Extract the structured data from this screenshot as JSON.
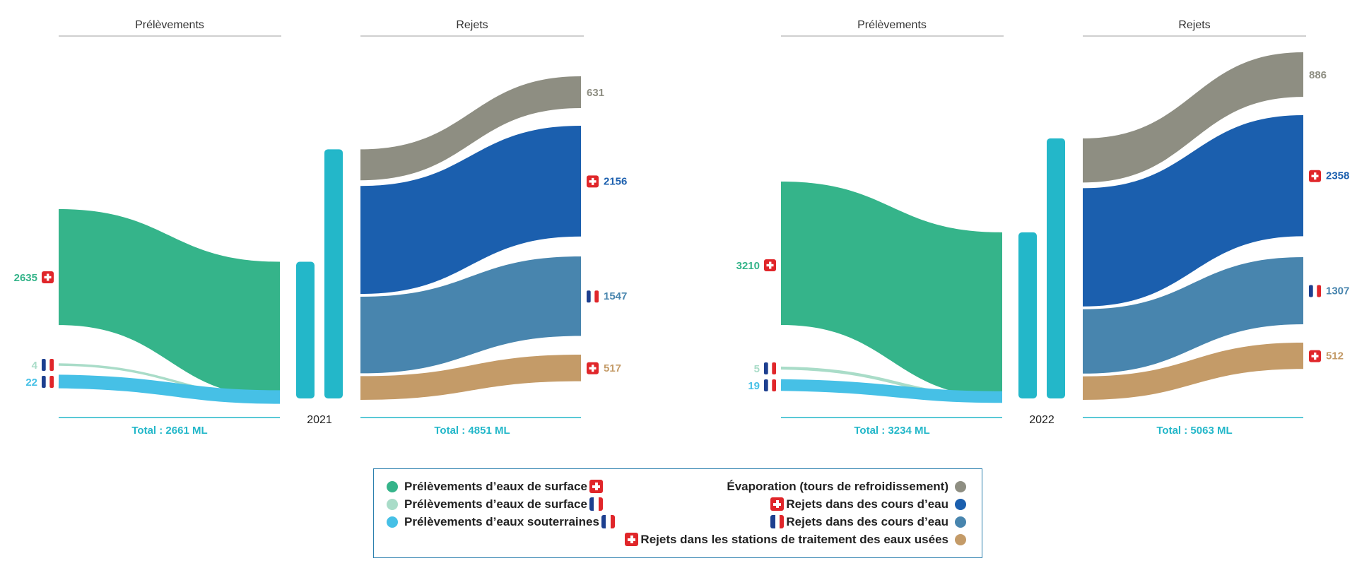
{
  "chart_data": [
    {
      "type": "sankey",
      "year": "2021",
      "left_header": "Prélèvements",
      "right_header": "Rejets",
      "left_total": "Total : 2661 ML",
      "right_total": "Total : 4851 ML",
      "sources": [
        {
          "name": "Prélèvements d’eaux de surface",
          "country": "ch",
          "value": 2635,
          "color": "#35b48a"
        },
        {
          "name": "Prélèvements d’eaux de surface",
          "country": "fr",
          "value": 4,
          "color": "#a9dcc8"
        },
        {
          "name": "Prélèvements d’eaux souterraines",
          "country": "fr",
          "value": 22,
          "color": "#46c0e6"
        }
      ],
      "outputs": [
        {
          "name": "Évaporation (tours de refroidissement)",
          "country": "",
          "value": 631,
          "color": "#8e8e82"
        },
        {
          "name": "Rejets dans des cours d’eau",
          "country": "ch",
          "value": 2156,
          "color": "#1b5fae"
        },
        {
          "name": "Rejets dans des cours d’eau",
          "country": "fr",
          "value": 1547,
          "color": "#4885ae"
        },
        {
          "name": "Rejets dans les stations de traitement des eaux usées",
          "country": "ch",
          "value": 517,
          "color": "#c49b68"
        }
      ]
    },
    {
      "type": "sankey",
      "year": "2022",
      "left_header": "Prélèvements",
      "right_header": "Rejets",
      "left_total": "Total : 3234 ML",
      "right_total": "Total : 5063 ML",
      "sources": [
        {
          "name": "Prélèvements d’eaux de surface",
          "country": "ch",
          "value": 3210,
          "color": "#35b48a"
        },
        {
          "name": "Prélèvements d’eaux de surface",
          "country": "fr",
          "value": 5,
          "color": "#a9dcc8"
        },
        {
          "name": "Prélèvements d’eaux souterraines",
          "country": "fr",
          "value": 19,
          "color": "#46c0e6"
        }
      ],
      "outputs": [
        {
          "name": "Évaporation (tours de refroidissement)",
          "country": "",
          "value": 886,
          "color": "#8e8e82"
        },
        {
          "name": "Rejets dans des cours d’eau",
          "country": "ch",
          "value": 2358,
          "color": "#1b5fae"
        },
        {
          "name": "Rejets dans des cours d’eau",
          "country": "fr",
          "value": 1307,
          "color": "#4885ae"
        },
        {
          "name": "Rejets dans les stations de traitement des eaux usées",
          "country": "ch",
          "value": 512,
          "color": "#c49b68"
        }
      ]
    }
  ],
  "legend": {
    "left": [
      {
        "label": "Prélèvements d’eaux de surface",
        "country": "ch",
        "color": "#35b48a"
      },
      {
        "label": "Prélèvements d’eaux de surface",
        "country": "fr",
        "color": "#a9dcc8"
      },
      {
        "label": "Prélèvements d’eaux souterraines",
        "country": "fr",
        "color": "#46c0e6"
      }
    ],
    "right": [
      {
        "label": "Évaporation (tours de refroidissement)",
        "country": "",
        "color": "#8e8e82"
      },
      {
        "label": "Rejets dans des cours d’eau",
        "country": "ch",
        "color": "#1b5fae"
      },
      {
        "label": "Rejets dans des cours d’eau",
        "country": "fr",
        "color": "#4885ae"
      },
      {
        "label": "Rejets dans les stations de traitement des eaux usées",
        "country": "ch",
        "color": "#c49b68"
      }
    ]
  },
  "colors": {
    "bar": "#23b7c9",
    "total_line": "#23b7c9",
    "header_line": "#cfcfcf",
    "fr_blue": "#1d3f8f",
    "fr_red": "#e0262a"
  }
}
